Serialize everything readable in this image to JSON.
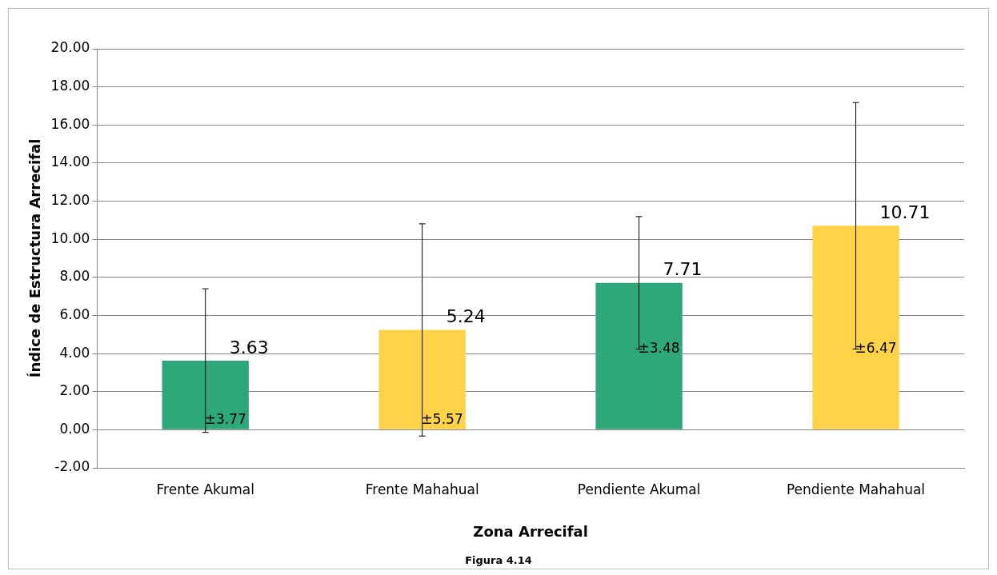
{
  "chart_data": {
    "type": "bar",
    "xlabel": "Zona Arrecifal",
    "ylabel": "Índice de Estructura Arrecifal",
    "categories": [
      "Frente Akumal",
      "Frente Mahahual",
      "Pendiente Akumal",
      "Pendiente Mahahual"
    ],
    "values": [
      3.63,
      5.24,
      7.71,
      10.71
    ],
    "colors": [
      "#2ea87b",
      "#fed348",
      "#2ea87b",
      "#fed348"
    ],
    "errors": [
      3.77,
      5.57,
      3.48,
      6.47
    ],
    "data_labels": true,
    "ylim": [
      -2,
      20
    ],
    "yticks": [
      {
        "value": -2,
        "label": "-2.00"
      },
      {
        "value": 0,
        "label": "0.00"
      },
      {
        "value": 2,
        "label": "2.00"
      },
      {
        "value": 4,
        "label": "4.00"
      },
      {
        "value": 6,
        "label": "6.00"
      },
      {
        "value": 8,
        "label": "8.00"
      },
      {
        "value": 10,
        "label": "10.00"
      },
      {
        "value": 12,
        "label": "12.00"
      },
      {
        "value": 14,
        "label": "14.00"
      },
      {
        "value": 16,
        "label": "16.00"
      },
      {
        "value": 18,
        "label": "18.00"
      },
      {
        "value": 20,
        "label": "20.00"
      }
    ],
    "grid": "y",
    "annotations": [
      {
        "text": "±3.77",
        "x": "Frente Akumal",
        "y": 0.5
      },
      {
        "text": "±5.57",
        "x": "Frente Mahahual",
        "y": 0.5
      },
      {
        "text": "±3.48",
        "x": "Pendiente Akumal",
        "y": 4.23
      },
      {
        "text": "±6.47",
        "x": "Pendiente Mahahual",
        "y": 4.24
      },
      "Figura 4.14"
    ]
  }
}
